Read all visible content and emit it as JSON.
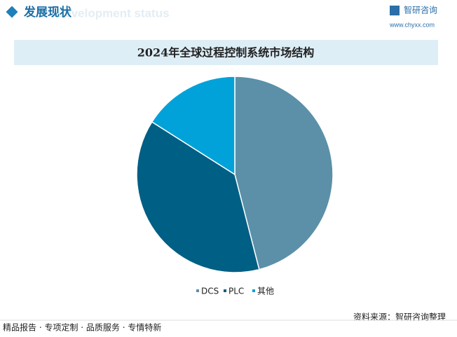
{
  "header": {
    "title": "发展现状",
    "subtitle": "Development status",
    "logo": "智研咨询",
    "url": "www.chyxx.com"
  },
  "chart_data": {
    "type": "pie",
    "title": "2024年全球过程控制系统市场结构",
    "categories": [
      "DCS",
      "PLC",
      "其他"
    ],
    "values": [
      46,
      38,
      16
    ],
    "colors": [
      "#5b90a8",
      "#005f84",
      "#00a2d9"
    ],
    "legend": "bottom"
  },
  "source": "资料来源：智研咨询整理",
  "footer": "精品报告 · 专项定制 · 品质服务 · 专情特新"
}
